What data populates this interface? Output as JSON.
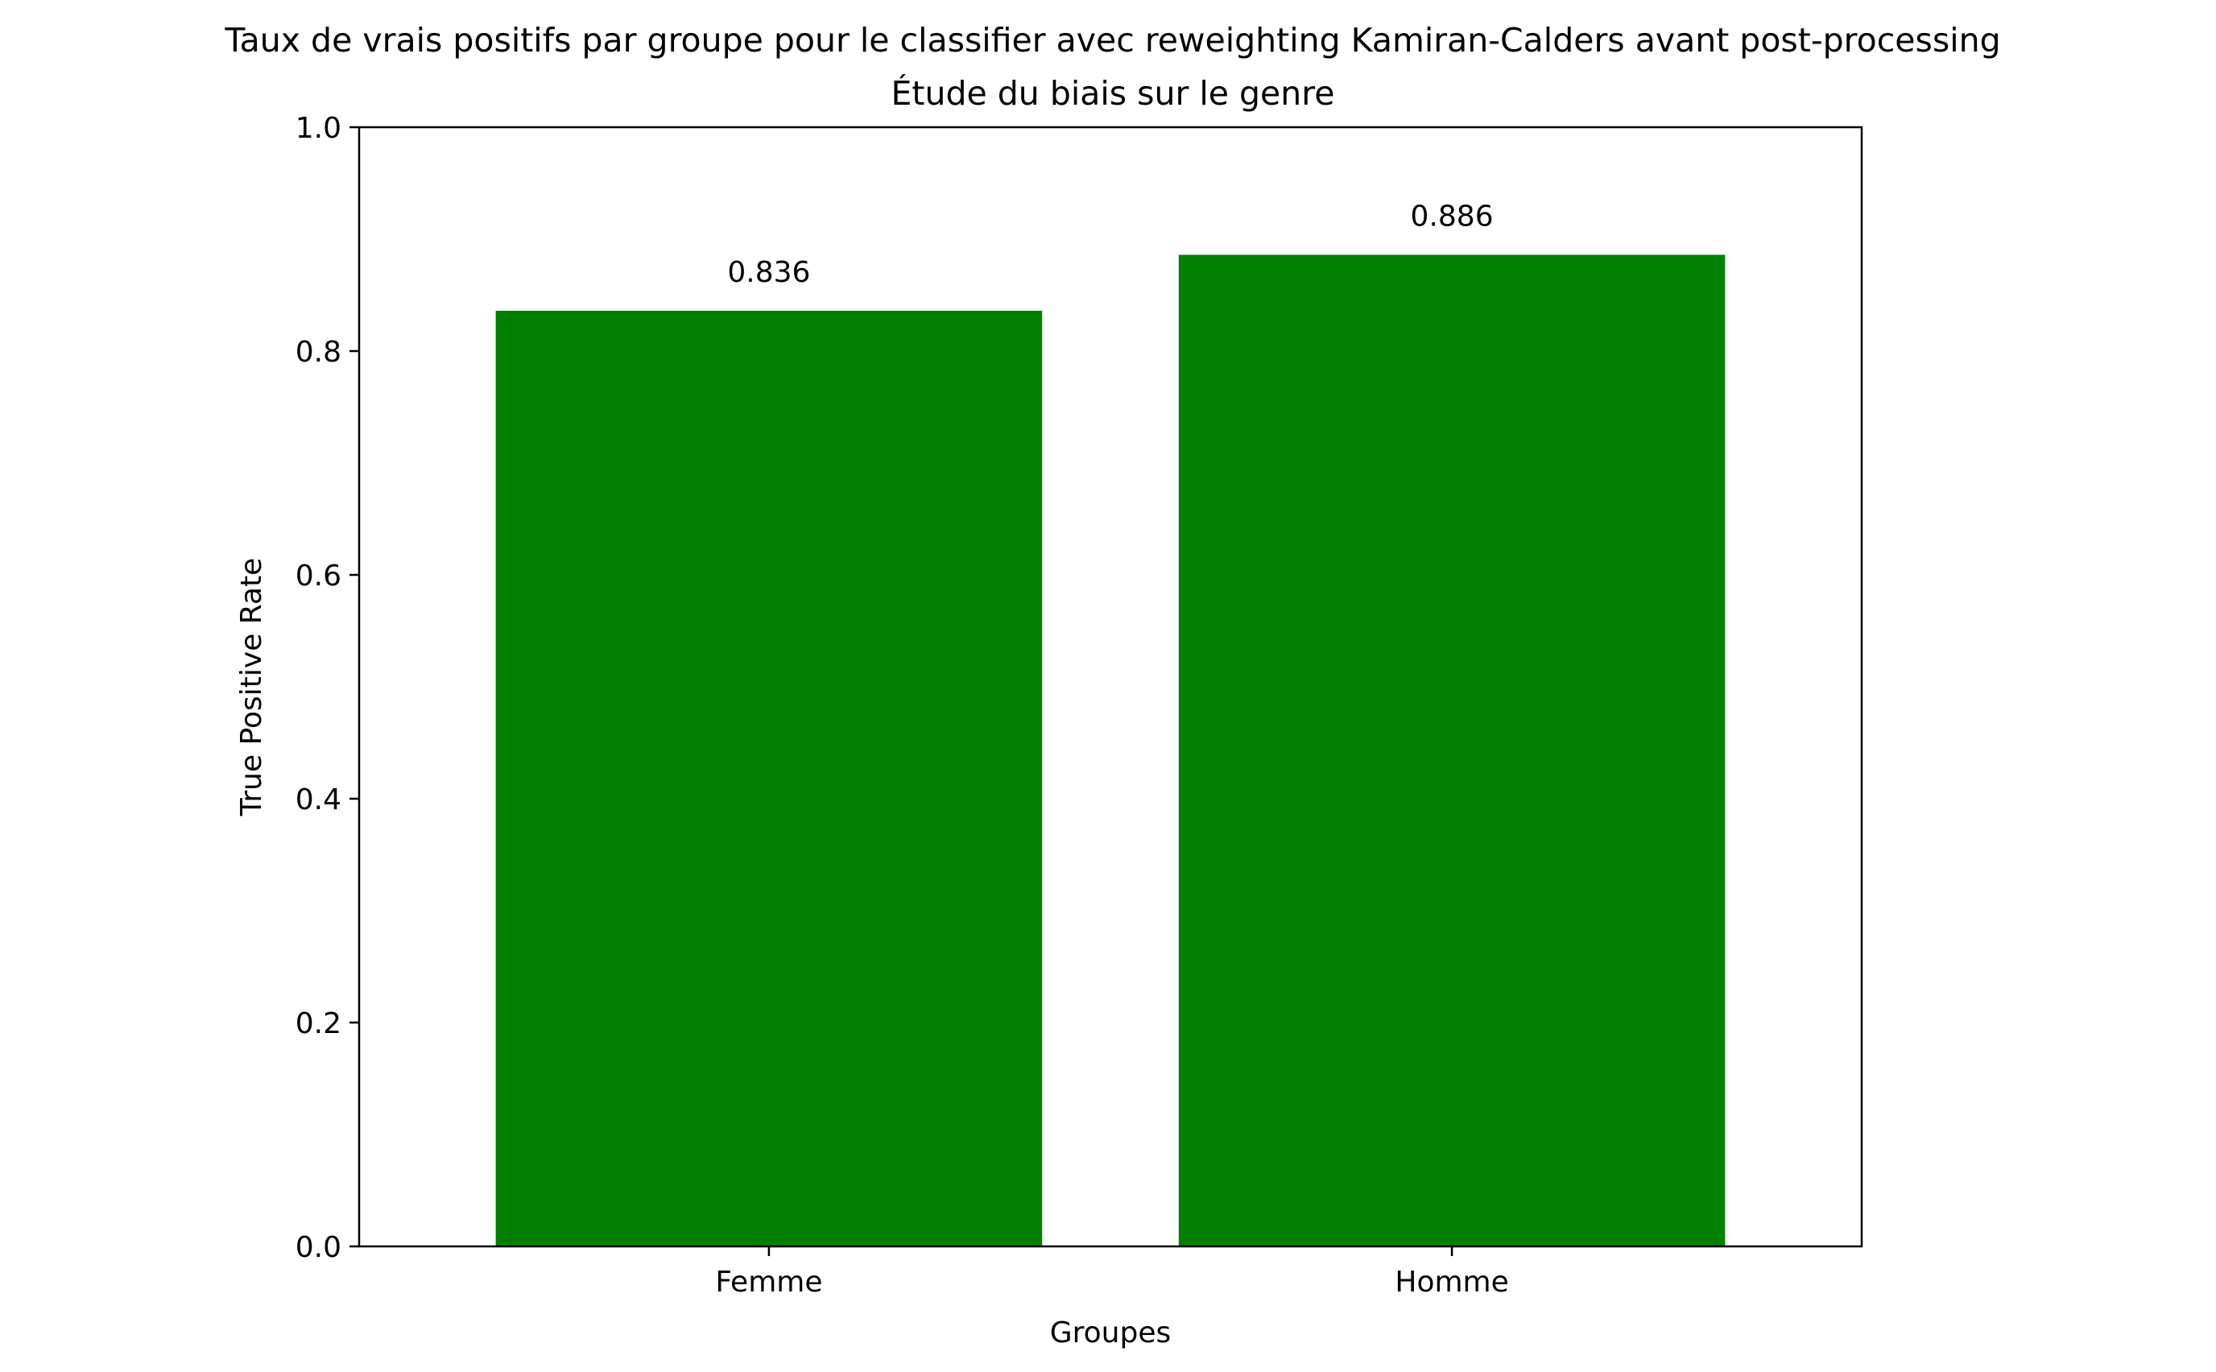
{
  "chart_data": {
    "type": "bar",
    "title": "Taux de vrais positifs par groupe pour le classifier avec reweighting Kamiran-Calders avant post-processing",
    "subtitle": "Étude du biais sur le genre",
    "xlabel": "Groupes",
    "ylabel": "True Positive Rate",
    "categories": [
      "Femme",
      "Homme"
    ],
    "values": [
      0.836,
      0.886
    ],
    "value_labels": [
      "0.836",
      "0.886"
    ],
    "ylim": [
      0,
      1.0
    ],
    "yticks": [
      0.0,
      0.2,
      0.4,
      0.6,
      0.8,
      1.0
    ],
    "ytick_labels": [
      "0.0",
      "0.2",
      "0.4",
      "0.6",
      "0.8",
      "1.0"
    ],
    "bar_color": "#008000",
    "grid": false,
    "legend": null
  }
}
